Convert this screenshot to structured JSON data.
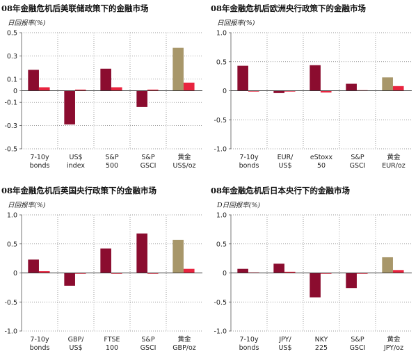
{
  "chart_data": [
    {
      "type": "bar",
      "title": "08年金融危机后美联储政策下的金融市场",
      "ylabel": "日回报率(%)",
      "ylim": [
        -0.5,
        0.5
      ],
      "yticks": [
        "0.5",
        "0.3",
        "0.1",
        "0",
        "-0.1",
        "-0.3",
        "-0.5"
      ],
      "ytick_values": [
        0.5,
        0.3,
        0.1,
        0,
        -0.1,
        -0.3,
        -0.5
      ],
      "categories": [
        [
          "7-10y",
          "bonds"
        ],
        [
          "US$",
          "index"
        ],
        [
          "S&P",
          "500"
        ],
        [
          "S&P",
          "GSCI"
        ],
        [
          "黄金",
          "US$/oz"
        ]
      ],
      "values_primary": [
        0.18,
        -0.29,
        0.19,
        -0.14,
        0.37
      ],
      "values_secondary": [
        0.03,
        0.01,
        0.03,
        0.01,
        0.07
      ]
    },
    {
      "type": "bar",
      "title": "08年金融危机后欧洲央行政策下的金融市场",
      "ylabel": "日回报率(%)",
      "ylim": [
        -1.0,
        1.0
      ],
      "yticks": [
        "1.0",
        "0.5",
        "0",
        "-0.5",
        "-1.0"
      ],
      "ytick_values": [
        1.0,
        0.5,
        0,
        -0.5,
        -1.0
      ],
      "categories": [
        [
          "7-10y",
          "bonds"
        ],
        [
          "EUR/",
          "US$"
        ],
        [
          "eStoxx",
          "50"
        ],
        [
          "S&P",
          "GSCI"
        ],
        [
          "黄金",
          "EUR/oz"
        ]
      ],
      "values_primary": [
        0.43,
        -0.04,
        0.44,
        0.12,
        0.23
      ],
      "values_secondary": [
        0.0,
        0.0,
        -0.03,
        0.01,
        0.08
      ]
    },
    {
      "type": "bar",
      "title": "08年金融危机后英国央行政策下的金融市场",
      "ylabel": "日回报率(%)",
      "ylim": [
        -1.0,
        1.0
      ],
      "yticks": [
        "1.0",
        "0.5",
        "0",
        "-0.5",
        "-1.0"
      ],
      "ytick_values": [
        1.0,
        0.5,
        0,
        -0.5,
        -1.0
      ],
      "categories": [
        [
          "7-10y",
          "bonds"
        ],
        [
          "GBP/",
          "US$"
        ],
        [
          "FTSE",
          "100"
        ],
        [
          "S&P",
          "GSCI"
        ],
        [
          "黄金",
          "GBP/oz"
        ]
      ],
      "values_primary": [
        0.23,
        -0.22,
        0.42,
        0.68,
        0.57
      ],
      "values_secondary": [
        0.03,
        -0.01,
        0.0,
        0.0,
        0.07
      ]
    },
    {
      "type": "bar",
      "title": "08年金融危机后日本央行下的金融市场",
      "ylabel": "D日回报率(%)",
      "ylim": [
        -1.0,
        1.0
      ],
      "yticks": [
        "1.0",
        "0.5",
        "0",
        "-0.5",
        "-1.0"
      ],
      "ytick_values": [
        1.0,
        0.5,
        0,
        -0.5,
        -1.0
      ],
      "categories": [
        [
          "7-10y",
          "bonds"
        ],
        [
          "JPY/",
          "US$"
        ],
        [
          "NKY",
          "225"
        ],
        [
          "S&P",
          "GSCI"
        ],
        [
          "黄金",
          "JPY/oz"
        ]
      ],
      "values_primary": [
        0.07,
        0.16,
        -0.42,
        -0.26,
        0.27
      ],
      "values_secondary": [
        0.01,
        0.02,
        -0.01,
        -0.01,
        0.05
      ]
    }
  ],
  "colors": {
    "primary": "#8b0c2f",
    "gold": "#a8976a",
    "secondary": "#e8243f",
    "axis": "#555555",
    "grid": "#7a7a7a"
  }
}
